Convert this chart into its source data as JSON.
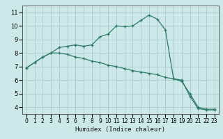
{
  "title": "",
  "xlabel": "Humidex (Indice chaleur)",
  "ylabel": "",
  "bg_color": "#cce8e8",
  "line_color": "#2d7a6a",
  "grid_color": "#aacaca",
  "xlim": [
    -0.5,
    23.5
  ],
  "ylim": [
    3.5,
    11.5
  ],
  "xticks": [
    0,
    1,
    2,
    3,
    4,
    5,
    6,
    7,
    8,
    9,
    10,
    11,
    12,
    13,
    14,
    15,
    16,
    17,
    18,
    19,
    20,
    21,
    22,
    23
  ],
  "yticks": [
    4,
    5,
    6,
    7,
    8,
    9,
    10,
    11
  ],
  "line1_x": [
    0,
    1,
    2,
    3,
    4,
    5,
    6,
    7,
    8,
    9,
    10,
    11,
    12,
    13,
    14,
    15,
    16,
    17,
    18,
    19,
    20,
    21,
    22,
    23
  ],
  "line1_y": [
    6.9,
    7.3,
    7.7,
    8.0,
    8.4,
    8.5,
    8.6,
    8.5,
    8.6,
    9.2,
    9.4,
    10.0,
    9.95,
    10.0,
    10.4,
    10.8,
    10.5,
    9.7,
    6.1,
    6.0,
    4.8,
    3.9,
    3.8,
    3.8
  ],
  "line2_x": [
    0,
    1,
    2,
    3,
    4,
    5,
    6,
    7,
    8,
    9,
    10,
    11,
    12,
    13,
    14,
    15,
    16,
    17,
    18,
    19,
    20,
    21,
    22,
    23
  ],
  "line2_y": [
    6.9,
    7.3,
    7.7,
    8.0,
    8.0,
    7.9,
    7.7,
    7.6,
    7.4,
    7.3,
    7.1,
    7.0,
    6.85,
    6.7,
    6.6,
    6.5,
    6.4,
    6.2,
    6.1,
    5.9,
    5.0,
    4.0,
    3.85,
    3.85
  ]
}
